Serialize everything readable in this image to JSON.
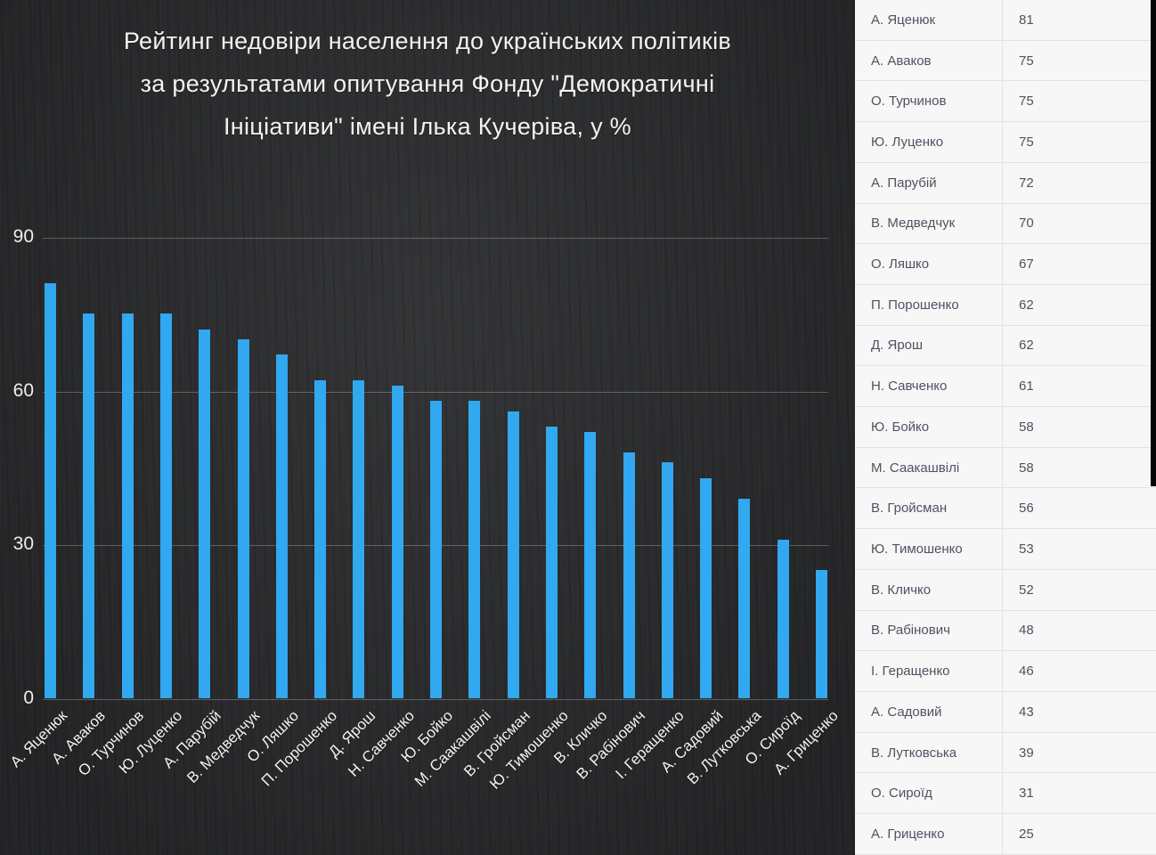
{
  "title_lines": [
    "Рейтинг недовіри населення до українських політиків",
    "за результатами опитування Фонду \"Демократичні",
    "Ініціативи\" імені Ілька Кучеріва, у %"
  ],
  "colors": {
    "chart_background": "#2c2d2f",
    "bar": "#31a8f0",
    "gridline": "rgba(255,255,255,0.25)",
    "axis_text": "#ededed",
    "table_background": "#f7f7f8",
    "table_text": "#4d5360",
    "table_border": "#e3e3e5"
  },
  "chart_data": {
    "type": "bar",
    "title": "Рейтинг недовіри населення до українських політиків за результатами опитування Фонду \"Демократичні Ініціативи\" імені Ілька Кучеріва, у %",
    "categories": [
      "А. Яценюк",
      "А. Аваков",
      "О. Турчинов",
      "Ю. Луценко",
      "А. Парубій",
      "В. Медведчук",
      "О. Ляшко",
      "П. Порошенко",
      "Д. Ярош",
      "Н. Савченко",
      "Ю. Бойко",
      "М. Саакашвілі",
      "В. Гройсман",
      "Ю. Тимошенко",
      "В. Кличко",
      "В. Рабінович",
      "І. Геращенко",
      "А. Садовий",
      "В. Лутковська",
      "О. Сироїд",
      "А. Гриценко"
    ],
    "values": [
      81,
      75,
      75,
      75,
      72,
      70,
      67,
      62,
      62,
      61,
      58,
      58,
      56,
      53,
      52,
      48,
      46,
      43,
      39,
      31,
      25
    ],
    "xlabel": "",
    "ylabel": "",
    "ylim": [
      0,
      90
    ],
    "yticks": [
      0,
      30,
      60,
      90
    ],
    "grid": "horizontal",
    "legend": "none",
    "bar_color": "#31a8f0",
    "xlabel_rotation_deg": -45
  }
}
